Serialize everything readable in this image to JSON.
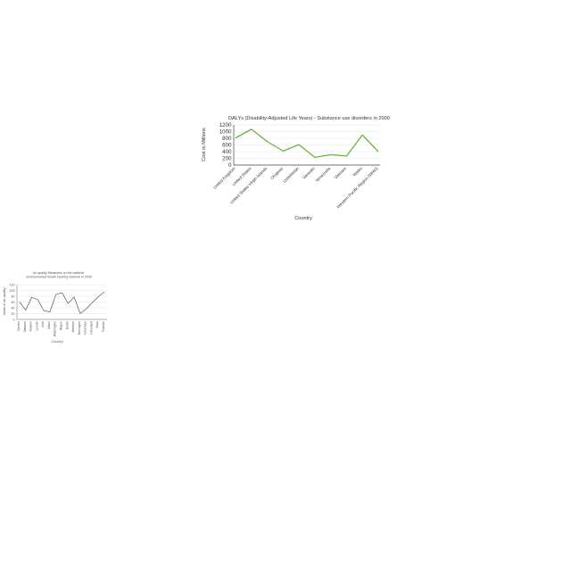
{
  "chart_data": [
    {
      "type": "line",
      "title": "DALYs (Disability-Adjusted Life Years) - Substance use disorders in 2000",
      "xlabel": "Country",
      "ylabel": "Cost in Millions",
      "categories": [
        "United Kingdom",
        "United States",
        "United States Virgin Islands",
        "Uruguay",
        "Uzbekistan",
        "Vanuatu",
        "Venezuela",
        "Vietnam",
        "Wales",
        "Western Pacific Region (WHO)"
      ],
      "y_ticks": [
        "1200",
        "1000",
        "800",
        "600",
        "400",
        "200",
        "0"
      ],
      "ylim": [
        0,
        1200
      ],
      "series": [
        {
          "values": [
            810,
            1070,
            700,
            420,
            610,
            230,
            310,
            270,
            900,
            400
          ],
          "color": "#6db33f"
        }
      ],
      "grid": true
    },
    {
      "type": "line",
      "title": "Air quality Measures on the national environmental health tracking network in 2008",
      "xlabel": "Country",
      "ylabel": "Value of air quality",
      "categories": [
        "Denver",
        "Dawson",
        "Hudson",
        "Lincoln",
        "Utah",
        "Miami",
        "Washington",
        "Wayne",
        "Bristol",
        "Madison",
        "Barrington",
        "Columbus",
        "Cleveland",
        "Sioux",
        "Franklin"
      ],
      "y_ticks": [
        "120",
        "100",
        "80",
        "60",
        "40",
        "20",
        "0"
      ],
      "ylim": [
        0,
        120
      ],
      "series": [
        {
          "values": [
            60,
            32,
            76,
            68,
            30,
            26,
            86,
            92,
            55,
            77,
            20,
            36,
            58,
            78,
            95
          ],
          "color": "#555555"
        }
      ],
      "grid": true
    }
  ]
}
